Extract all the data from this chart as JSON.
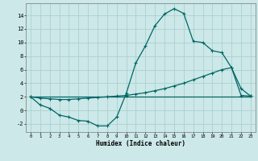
{
  "xlabel": "Humidex (Indice chaleur)",
  "bg_color": "#cce8e8",
  "grid_color": "#a8cccc",
  "line_color": "#006666",
  "xlim": [
    -0.5,
    23.5
  ],
  "ylim": [
    -3.2,
    15.8
  ],
  "series1_x": [
    0,
    1,
    2,
    3,
    4,
    5,
    6,
    7,
    8,
    9,
    10,
    11,
    12,
    13,
    14,
    15,
    16,
    17,
    18,
    19,
    20,
    21,
    22,
    23
  ],
  "series1_y": [
    2.0,
    0.8,
    0.3,
    -0.7,
    -1.0,
    -1.5,
    -1.6,
    -2.3,
    -2.3,
    -1.0,
    2.5,
    7.0,
    9.5,
    12.5,
    14.2,
    15.0,
    14.3,
    10.2,
    10.0,
    8.8,
    8.5,
    6.3,
    3.2,
    2.1
  ],
  "series2_x": [
    0,
    1,
    2,
    3,
    4,
    5,
    6,
    7,
    8,
    9,
    10,
    11,
    12,
    13,
    14,
    15,
    16,
    17,
    18,
    19,
    20,
    21,
    22,
    23
  ],
  "series2_y": [
    2.0,
    1.8,
    1.7,
    1.6,
    1.6,
    1.7,
    1.8,
    1.9,
    2.0,
    2.1,
    2.2,
    2.4,
    2.6,
    2.9,
    3.2,
    3.6,
    4.0,
    4.5,
    5.0,
    5.5,
    6.0,
    6.3,
    2.2,
    2.1
  ],
  "series3_x": [
    0,
    23
  ],
  "series3_y": [
    2.0,
    2.0
  ],
  "yticks": [
    -2,
    0,
    2,
    4,
    6,
    8,
    10,
    12,
    14
  ],
  "xticks": [
    0,
    1,
    2,
    3,
    4,
    5,
    6,
    7,
    8,
    9,
    10,
    11,
    12,
    13,
    14,
    15,
    16,
    17,
    18,
    19,
    20,
    21,
    22,
    23
  ]
}
